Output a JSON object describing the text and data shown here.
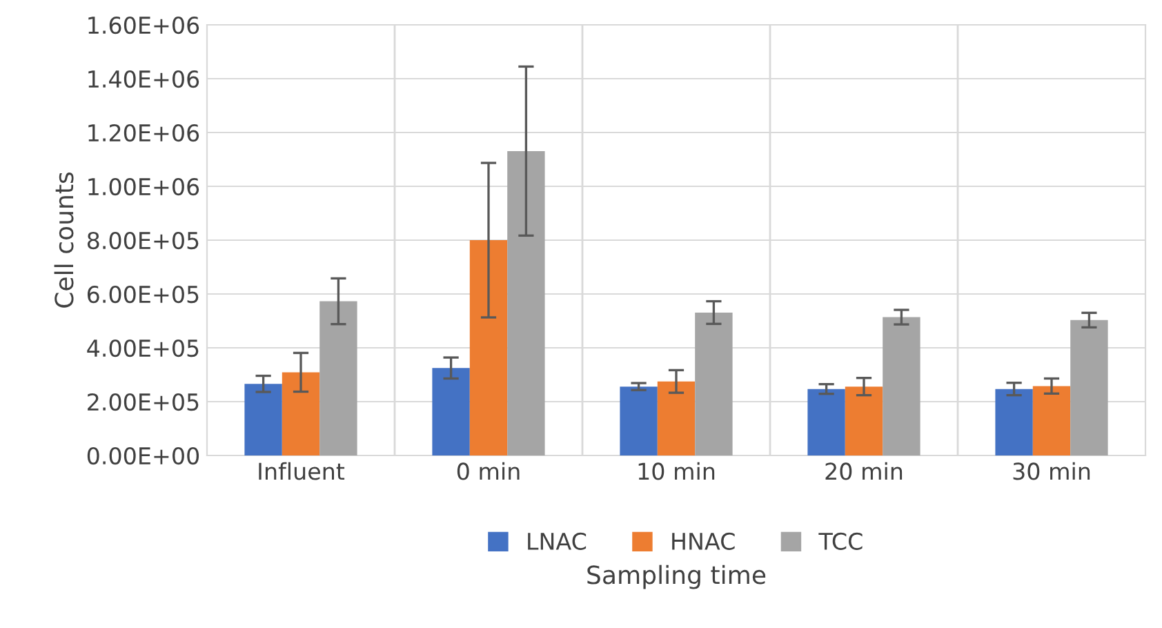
{
  "chart_data": {
    "type": "bar",
    "xlabel": "Sampling time",
    "ylabel": "Cell counts",
    "categories": [
      "Influent",
      "0 min",
      "10 min",
      "20 min",
      "30 min"
    ],
    "series": [
      {
        "name": "LNAC",
        "color": "#4472c4",
        "values": [
          266000,
          325000,
          256000,
          247000,
          247000
        ],
        "errors": [
          30000,
          39000,
          13000,
          18000,
          23000
        ]
      },
      {
        "name": "HNAC",
        "color": "#ed7d31",
        "values": [
          309000,
          800000,
          275000,
          256000,
          258000
        ],
        "errors": [
          72000,
          287000,
          42000,
          32000,
          28000
        ]
      },
      {
        "name": "TCC",
        "color": "#a5a5a5",
        "values": [
          573000,
          1131000,
          531000,
          514000,
          503000
        ],
        "errors": [
          85000,
          314000,
          42000,
          27000,
          27000
        ]
      }
    ],
    "ylim": [
      0,
      1600000
    ],
    "yticks": [
      {
        "value": 0,
        "label": "0.00E+00"
      },
      {
        "value": 200000,
        "label": "2.00E+05"
      },
      {
        "value": 400000,
        "label": "4.00E+05"
      },
      {
        "value": 600000,
        "label": "6.00E+05"
      },
      {
        "value": 800000,
        "label": "8.00E+05"
      },
      {
        "value": 1000000,
        "label": "1.00E+06"
      },
      {
        "value": 1200000,
        "label": "1.20E+06"
      },
      {
        "value": 1400000,
        "label": "1.40E+06"
      },
      {
        "value": 1600000,
        "label": "1.60E+06"
      }
    ],
    "grid": true,
    "legend": "bottom"
  }
}
